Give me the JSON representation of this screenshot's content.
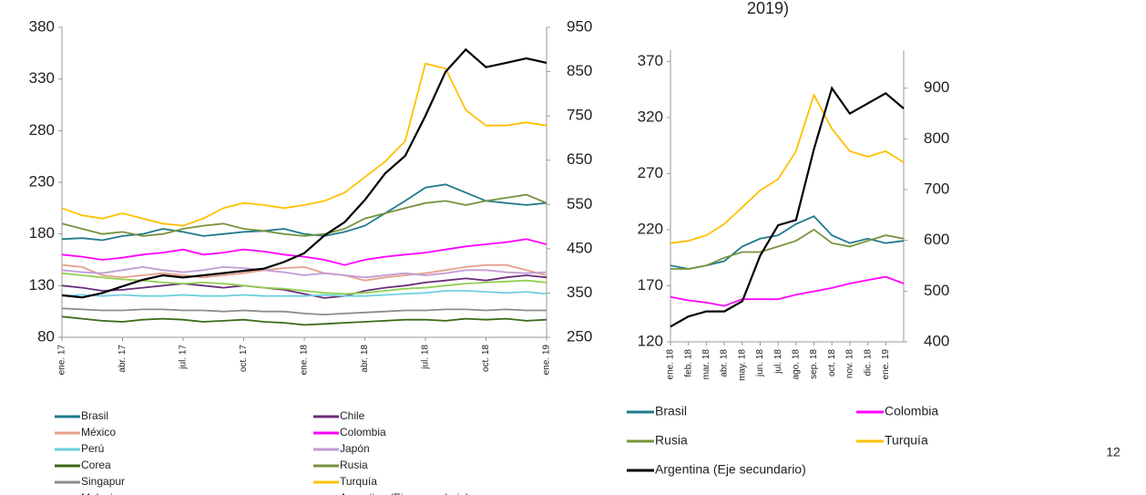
{
  "page_title_fragment": "2019)",
  "page_number": "12",
  "chart_data": [
    {
      "type": "line",
      "categories": [
        "ene. 17",
        null,
        null,
        "abr. 17",
        null,
        null,
        "jul. 17",
        null,
        null,
        "oct. 17",
        null,
        null,
        "ene. 18",
        null,
        null,
        "abr. 18",
        null,
        null,
        "jul. 18",
        null,
        null,
        "oct. 18",
        null,
        null,
        "ene. 19"
      ],
      "ylim": [
        80,
        380
      ],
      "yticks": [
        80,
        130,
        180,
        230,
        280,
        330,
        380
      ],
      "y2lim": [
        250,
        950
      ],
      "y2ticks": [
        250,
        350,
        450,
        550,
        650,
        750,
        850,
        950
      ],
      "series": [
        {
          "name": "Brasil",
          "color": "#1f7a8c",
          "values": [
            175,
            176,
            174,
            178,
            180,
            185,
            182,
            178,
            180,
            182,
            183,
            185,
            180,
            178,
            182,
            188,
            200,
            212,
            225,
            228,
            220,
            212,
            210,
            208,
            210
          ]
        },
        {
          "name": "Chile",
          "color": "#6b2d7a",
          "values": [
            130,
            128,
            125,
            126,
            128,
            130,
            132,
            130,
            128,
            130,
            128,
            126,
            122,
            118,
            120,
            125,
            128,
            130,
            133,
            135,
            137,
            135,
            138,
            140,
            138
          ]
        },
        {
          "name": "México",
          "color": "#e6a08c",
          "values": [
            150,
            148,
            140,
            138,
            140,
            142,
            140,
            138,
            140,
            142,
            145,
            147,
            148,
            142,
            140,
            135,
            138,
            140,
            142,
            145,
            148,
            150,
            150,
            145,
            140
          ]
        },
        {
          "name": "Colombia",
          "color": "#ff00ff",
          "values": [
            160,
            158,
            155,
            157,
            160,
            162,
            165,
            160,
            162,
            165,
            163,
            160,
            158,
            155,
            150,
            155,
            158,
            160,
            162,
            165,
            168,
            170,
            172,
            175,
            170
          ]
        },
        {
          "name": "Perú",
          "color": "#6fcfdf",
          "values": [
            120,
            121,
            120,
            121,
            120,
            120,
            121,
            120,
            120,
            121,
            120,
            120,
            120,
            121,
            120,
            120,
            121,
            122,
            123,
            125,
            125,
            124,
            123,
            124,
            122
          ]
        },
        {
          "name": "Japón",
          "color": "#c39bd3",
          "values": [
            145,
            143,
            142,
            145,
            148,
            145,
            143,
            145,
            148,
            147,
            145,
            143,
            140,
            142,
            140,
            138,
            140,
            142,
            140,
            142,
            145,
            145,
            143,
            142,
            143
          ]
        },
        {
          "name": "Corea",
          "color": "#3b6b1a",
          "values": [
            100,
            98,
            96,
            95,
            97,
            98,
            97,
            95,
            96,
            97,
            95,
            94,
            92,
            93,
            94,
            95,
            96,
            97,
            97,
            96,
            98,
            97,
            98,
            96,
            97
          ]
        },
        {
          "name": "Rusia",
          "color": "#77933c",
          "values": [
            190,
            185,
            180,
            182,
            178,
            180,
            185,
            188,
            190,
            185,
            183,
            180,
            178,
            180,
            185,
            195,
            200,
            205,
            210,
            212,
            208,
            212,
            215,
            218,
            210
          ]
        },
        {
          "name": "Singapur",
          "color": "#8c8c8c",
          "values": [
            108,
            107,
            106,
            106,
            107,
            107,
            106,
            106,
            105,
            106,
            105,
            105,
            103,
            102,
            103,
            104,
            105,
            106,
            106,
            107,
            107,
            106,
            107,
            106,
            106
          ]
        },
        {
          "name": "Turquía",
          "color": "#ffc000",
          "values": [
            205,
            198,
            195,
            200,
            195,
            190,
            188,
            195,
            205,
            210,
            208,
            205,
            208,
            212,
            220,
            235,
            250,
            270,
            345,
            340,
            300,
            285,
            285,
            288,
            285
          ]
        },
        {
          "name": "Malasia",
          "color": "#92d050",
          "values": [
            142,
            140,
            138,
            136,
            135,
            133,
            132,
            133,
            132,
            130,
            128,
            127,
            125,
            123,
            122,
            123,
            125,
            127,
            128,
            130,
            132,
            133,
            134,
            135,
            133
          ]
        },
        {
          "name": "Argentina (Eje secundario)",
          "color": "#000000",
          "axis": "y2",
          "values": [
            345,
            340,
            350,
            365,
            380,
            390,
            385,
            390,
            395,
            400,
            405,
            420,
            440,
            480,
            510,
            560,
            620,
            660,
            750,
            850,
            900,
            860,
            870,
            880,
            870
          ]
        }
      ]
    },
    {
      "type": "line",
      "categories": [
        "ene. 18",
        "feb. 18",
        "mar. 18",
        "abr. 18",
        "may. 18",
        "jun. 18",
        "jul. 18",
        "ago. 18",
        "sep. 18",
        "oct. 18",
        "nov. 18",
        "dic. 18",
        "ene. 19",
        null
      ],
      "ylim": [
        120,
        380
      ],
      "yticks": [
        120,
        170,
        220,
        270,
        320,
        370
      ],
      "y2lim": [
        400,
        975
      ],
      "y2ticks": [
        400,
        500,
        600,
        700,
        800,
        900
      ],
      "series": [
        {
          "name": "Brasil",
          "color": "#1f7a8c",
          "values": [
            188,
            185,
            188,
            192,
            205,
            212,
            215,
            225,
            232,
            215,
            208,
            212,
            208,
            210
          ]
        },
        {
          "name": "Colombia",
          "color": "#ff00ff",
          "values": [
            160,
            157,
            155,
            152,
            158,
            158,
            158,
            162,
            165,
            168,
            172,
            175,
            178,
            172
          ]
        },
        {
          "name": "Rusia",
          "color": "#77933c",
          "values": [
            185,
            185,
            188,
            195,
            200,
            200,
            205,
            210,
            220,
            208,
            205,
            210,
            215,
            212
          ]
        },
        {
          "name": "Turquía",
          "color": "#ffc000",
          "values": [
            208,
            210,
            215,
            225,
            240,
            255,
            265,
            290,
            340,
            310,
            290,
            285,
            290,
            280
          ]
        },
        {
          "name": "Argentina (Eje secundario)",
          "color": "#000000",
          "axis": "y2",
          "values": [
            430,
            450,
            460,
            460,
            480,
            570,
            630,
            640,
            780,
            900,
            850,
            870,
            890,
            860
          ]
        }
      ]
    }
  ]
}
